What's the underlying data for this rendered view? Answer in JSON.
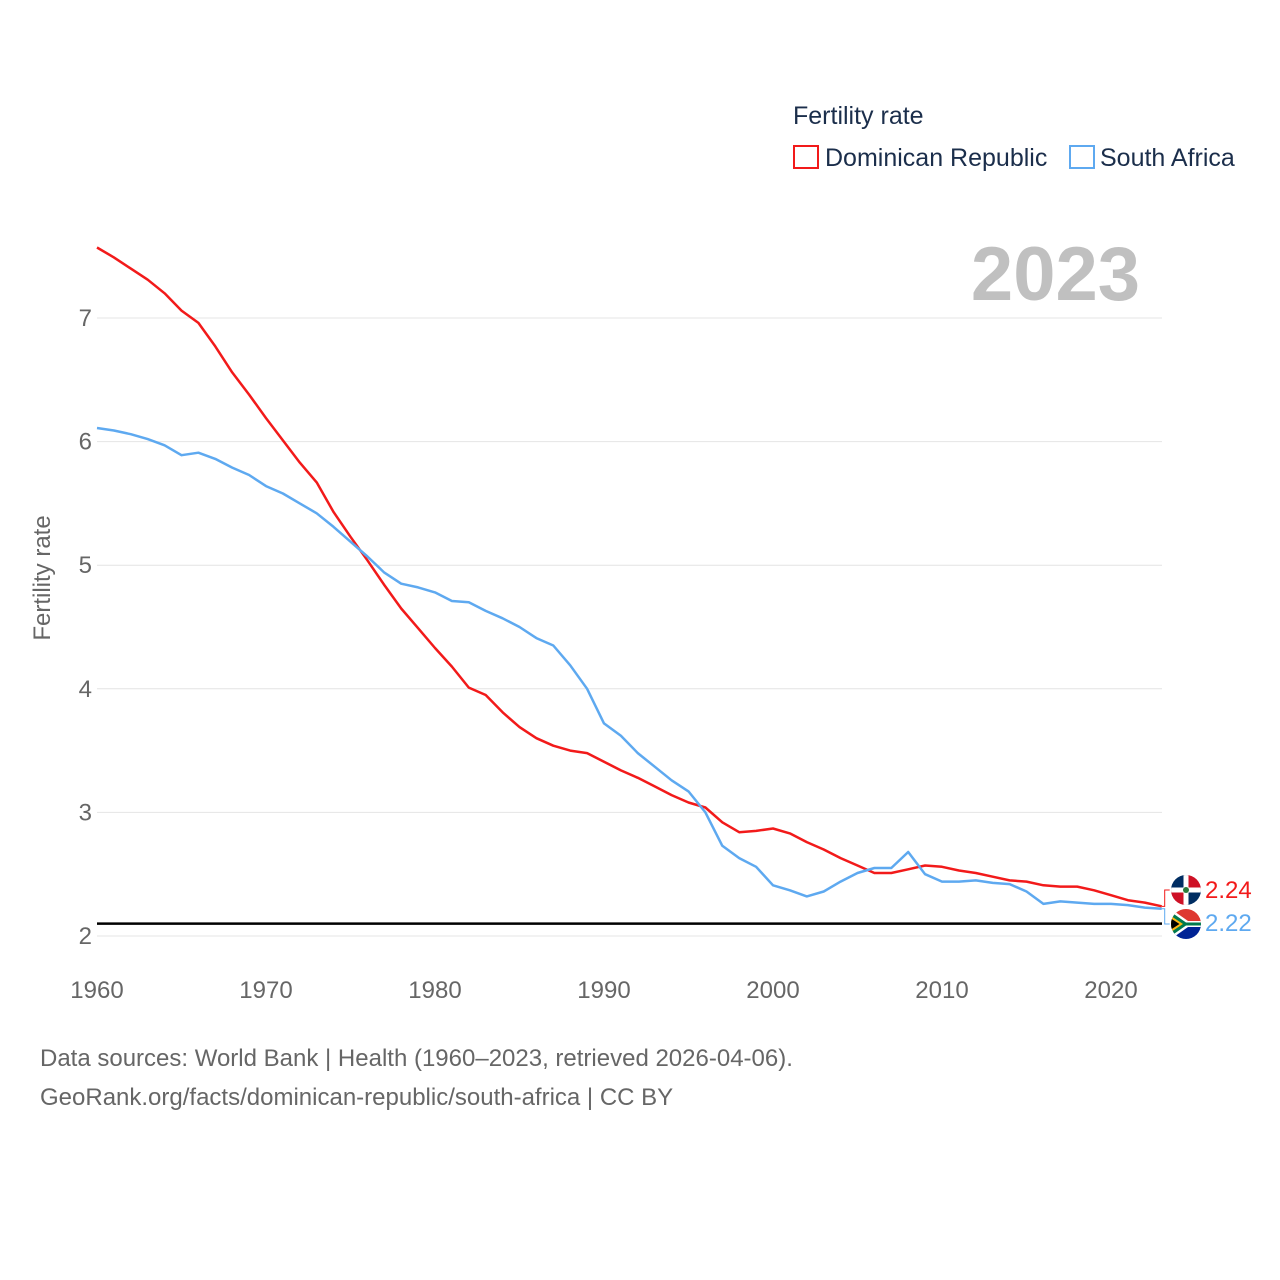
{
  "chart_data": {
    "type": "line",
    "title": "",
    "year_label": "2023",
    "legend_title": "Fertility rate",
    "legend_position": "top-right",
    "xlabel": "",
    "ylabel": "Fertility rate",
    "xlim": [
      1960,
      2023
    ],
    "ylim": [
      2,
      7.6
    ],
    "x_ticks": [
      "1960",
      "1970",
      "1980",
      "1990",
      "2000",
      "2010",
      "2020"
    ],
    "y_ticks": [
      "2",
      "3",
      "4",
      "5",
      "6",
      "7"
    ],
    "grid": true,
    "reference_line": 2.1,
    "x": [
      1960,
      1961,
      1962,
      1963,
      1964,
      1965,
      1966,
      1967,
      1968,
      1969,
      1970,
      1971,
      1972,
      1973,
      1974,
      1975,
      1976,
      1977,
      1978,
      1979,
      1980,
      1981,
      1982,
      1983,
      1984,
      1985,
      1986,
      1987,
      1988,
      1989,
      1990,
      1991,
      1992,
      1993,
      1994,
      1995,
      1996,
      1997,
      1998,
      1999,
      2000,
      2001,
      2002,
      2003,
      2004,
      2005,
      2006,
      2007,
      2008,
      2009,
      2010,
      2011,
      2012,
      2013,
      2014,
      2015,
      2016,
      2017,
      2018,
      2019,
      2020,
      2021,
      2022,
      2023
    ],
    "series": [
      {
        "name": "Dominican Republic",
        "color": "#f21a1a",
        "end_label": "2.24",
        "values": [
          7.57,
          7.49,
          7.4,
          7.31,
          7.2,
          7.06,
          6.96,
          6.77,
          6.56,
          6.38,
          6.19,
          6.01,
          5.83,
          5.67,
          5.43,
          5.23,
          5.04,
          4.84,
          4.65,
          4.49,
          4.33,
          4.18,
          4.01,
          3.95,
          3.81,
          3.69,
          3.6,
          3.54,
          3.5,
          3.48,
          3.41,
          3.34,
          3.28,
          3.21,
          3.14,
          3.08,
          3.04,
          2.92,
          2.84,
          2.85,
          2.87,
          2.83,
          2.76,
          2.7,
          2.63,
          2.57,
          2.51,
          2.51,
          2.54,
          2.57,
          2.56,
          2.53,
          2.51,
          2.48,
          2.45,
          2.44,
          2.41,
          2.4,
          2.4,
          2.37,
          2.33,
          2.29,
          2.27,
          2.24
        ]
      },
      {
        "name": "South Africa",
        "color": "#5ea9f0",
        "end_label": "2.22",
        "values": [
          6.11,
          6.09,
          6.06,
          6.02,
          5.97,
          5.89,
          5.91,
          5.86,
          5.79,
          5.73,
          5.64,
          5.58,
          5.5,
          5.42,
          5.31,
          5.19,
          5.07,
          4.94,
          4.85,
          4.82,
          4.78,
          4.71,
          4.7,
          4.63,
          4.57,
          4.5,
          4.41,
          4.35,
          4.19,
          4.0,
          3.72,
          3.62,
          3.48,
          3.37,
          3.26,
          3.17,
          3.0,
          2.73,
          2.63,
          2.56,
          2.41,
          2.37,
          2.32,
          2.36,
          2.44,
          2.51,
          2.55,
          2.55,
          2.68,
          2.5,
          2.44,
          2.44,
          2.45,
          2.43,
          2.42,
          2.36,
          2.26,
          2.28,
          2.27,
          2.26,
          2.26,
          2.25,
          2.23,
          2.22
        ]
      }
    ]
  },
  "footer": {
    "line1": "Data sources: World Bank | Health (1960–2023, retrieved 2026-04-06).",
    "line2": "GeoRank.org/facts/dominican-republic/south-africa | CC BY"
  }
}
